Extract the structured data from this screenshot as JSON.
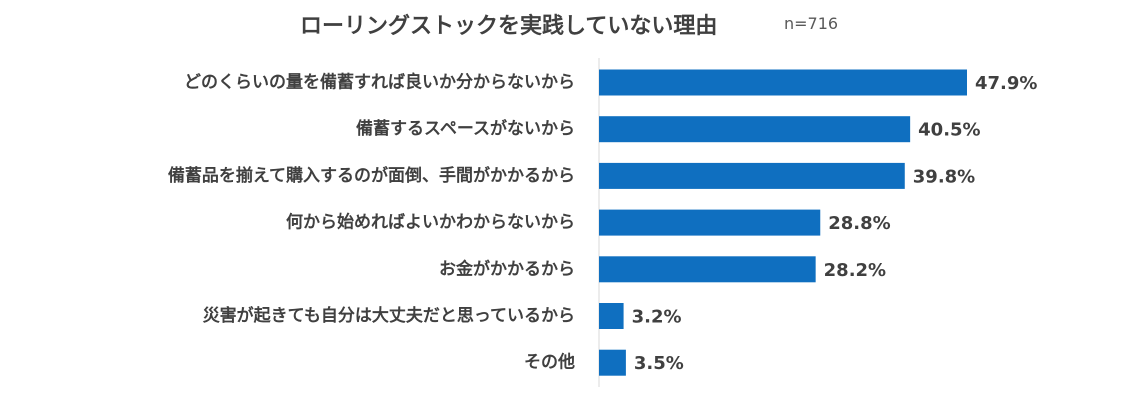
{
  "chart_data": {
    "type": "bar",
    "orientation": "horizontal",
    "title": "ローリングストックを実践していない理由",
    "subtitle": "n=716",
    "categories": [
      "どのくらいの量を備蓄すれば良いか分からないから",
      "備蓄するスペースがないから",
      "備蓄品を揃えて購入するのが面倒、手間がかかるから",
      "何から始めればよいかわからないから",
      "お金がかかるから",
      "災害が起きても自分は大丈夫だと思っているから",
      "その他"
    ],
    "values": [
      47.9,
      40.5,
      39.8,
      28.8,
      28.2,
      3.2,
      3.5
    ],
    "value_labels": [
      "47.9%",
      "40.5%",
      "39.8%",
      "28.8%",
      "28.2%",
      "3.2%",
      "3.5%"
    ],
    "bar_color": "#0F6FC0",
    "xlim": [
      0,
      100
    ],
    "grid": false,
    "legend": "none"
  }
}
